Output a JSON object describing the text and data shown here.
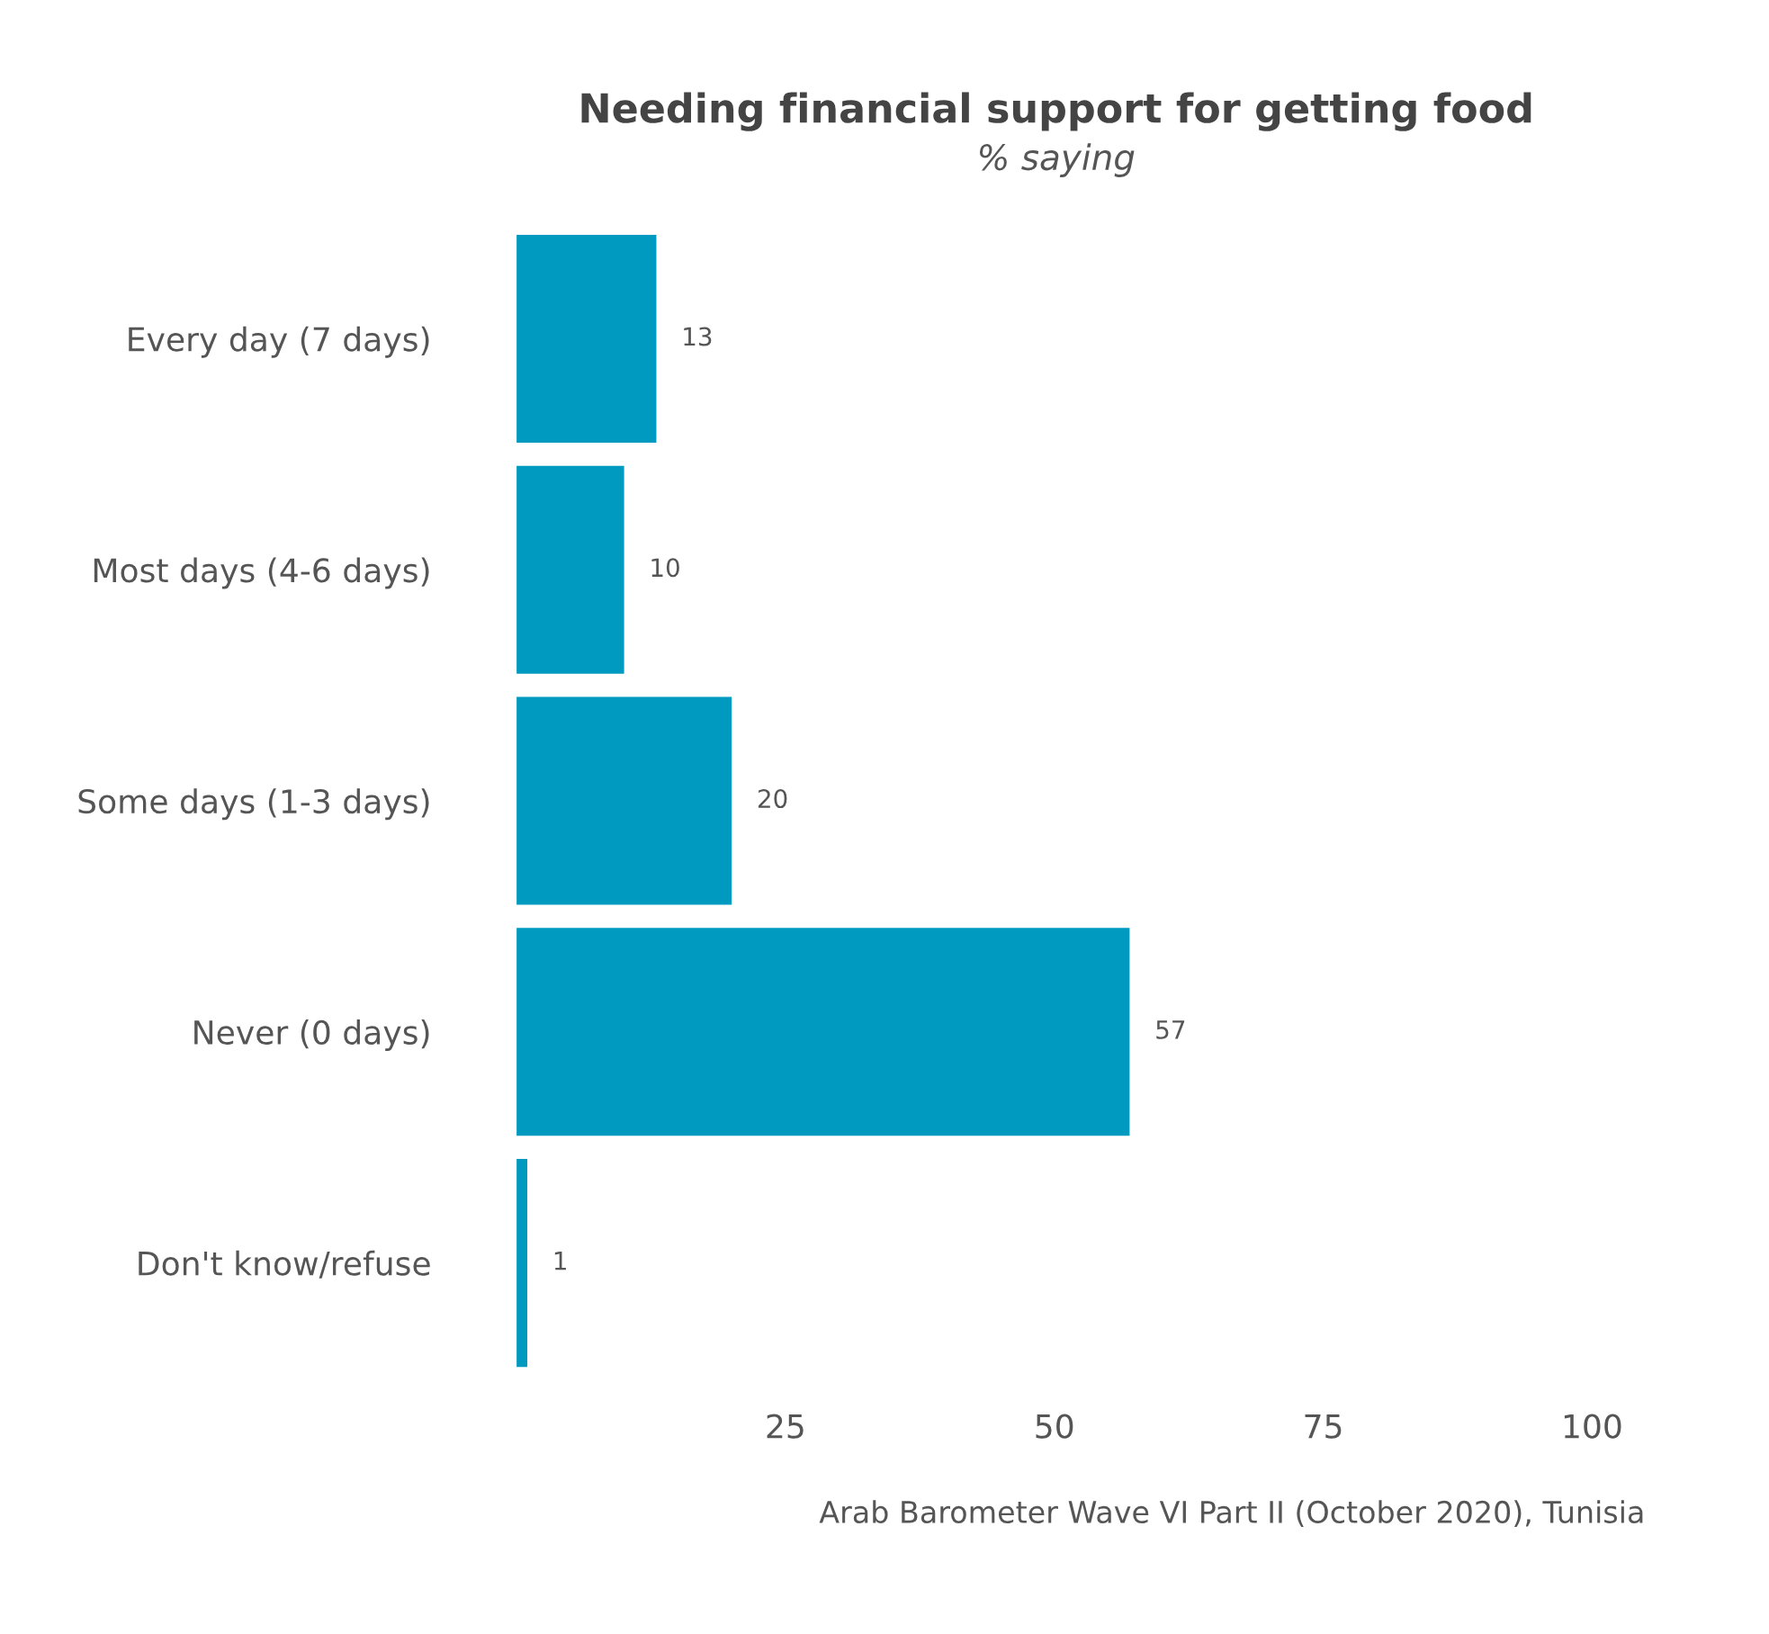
{
  "chart_data": {
    "type": "bar",
    "orientation": "horizontal",
    "title": "Needing financial support for getting food",
    "subtitle": "% saying",
    "categories": [
      "Every day (7 days)",
      "Most days (4-6 days)",
      "Some days (1-3 days)",
      "Never (0 days)",
      "Don't know/refuse"
    ],
    "values": [
      13,
      10,
      20,
      57,
      1
    ],
    "color": "#0099c0",
    "data_labels": true,
    "xlim": [
      0,
      100
    ],
    "xticks": [
      25,
      50,
      75,
      100
    ],
    "grid": false,
    "legend": false,
    "annotations": [
      "Arab Barometer Wave VI Part II (October 2020), Tunisia"
    ]
  }
}
